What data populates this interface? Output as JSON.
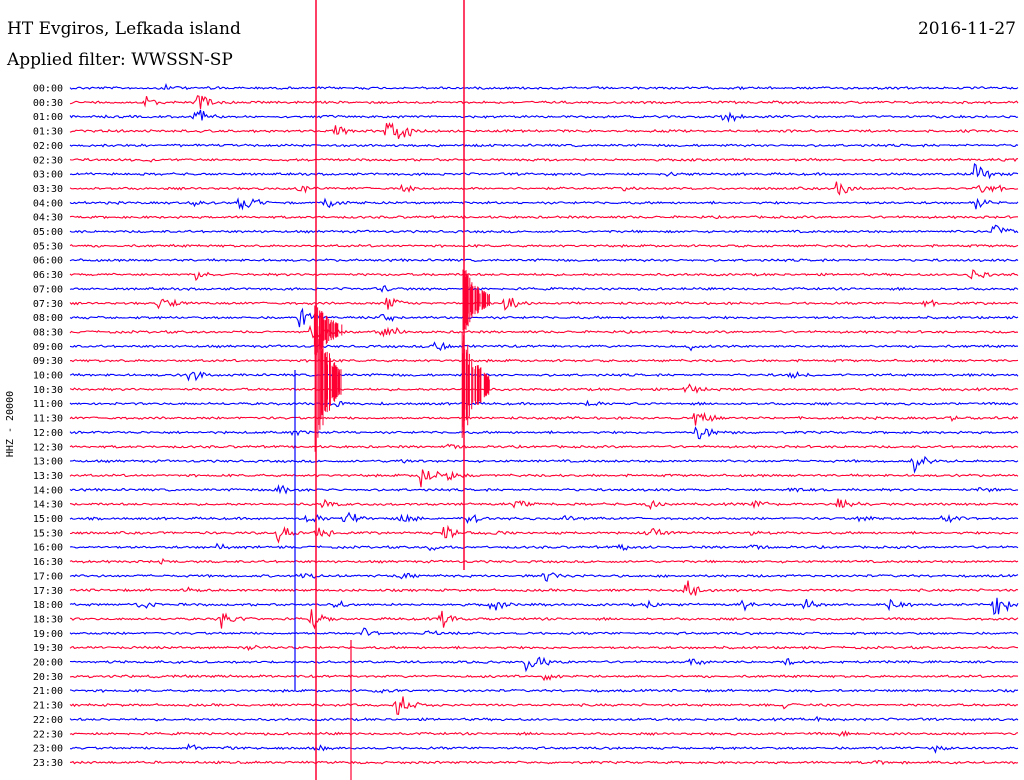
{
  "header": {
    "station": "HT Evgiros, Lefkada island",
    "date": "2016-11-27",
    "filter": "Applied filter: WWSSN-SP"
  },
  "chart_data": {
    "type": "line",
    "title": "HT Evgiros, Lefkada island",
    "subtitle": "Applied filter: WWSSN-SP",
    "date": "2016-11-27",
    "ylabel": "HHZ - 20000",
    "row_labels": [
      "00:00",
      "00:30",
      "01:00",
      "01:30",
      "02:00",
      "02:30",
      "03:00",
      "03:30",
      "04:00",
      "04:30",
      "05:00",
      "05:30",
      "06:00",
      "06:30",
      "07:00",
      "07:30",
      "08:00",
      "08:30",
      "09:00",
      "09:30",
      "10:00",
      "10:30",
      "11:00",
      "11:30",
      "12:00",
      "12:30",
      "13:00",
      "13:30",
      "14:00",
      "14:30",
      "15:00",
      "15:30",
      "16:00",
      "16:30",
      "17:00",
      "17:30",
      "18:00",
      "18:30",
      "19:00",
      "19:30",
      "20:00",
      "20:30",
      "21:00",
      "21:30",
      "22:00",
      "22:30",
      "23:00",
      "23:30"
    ],
    "colors": [
      "#0000ff",
      "#ff0033"
    ],
    "events": [
      {
        "row": 0,
        "x": 0.1,
        "amp": 6
      },
      {
        "row": 1,
        "x": 0.08,
        "amp": 8
      },
      {
        "row": 1,
        "x": 0.135,
        "amp": 14
      },
      {
        "row": 2,
        "x": 0.13,
        "amp": 12
      },
      {
        "row": 2,
        "x": 0.69,
        "amp": 9
      },
      {
        "row": 3,
        "x": 0.28,
        "amp": 8
      },
      {
        "row": 3,
        "x": 0.335,
        "amp": 30
      },
      {
        "row": 5,
        "x": 0.08,
        "amp": 4
      },
      {
        "row": 6,
        "x": 0.63,
        "amp": 5
      },
      {
        "row": 6,
        "x": 0.955,
        "amp": 14
      },
      {
        "row": 7,
        "x": 0.24,
        "amp": 9
      },
      {
        "row": 7,
        "x": 0.35,
        "amp": 6
      },
      {
        "row": 7,
        "x": 0.585,
        "amp": 5
      },
      {
        "row": 7,
        "x": 0.81,
        "amp": 14
      },
      {
        "row": 7,
        "x": 0.96,
        "amp": 12
      },
      {
        "row": 8,
        "x": 0.13,
        "amp": 5
      },
      {
        "row": 8,
        "x": 0.18,
        "amp": 14
      },
      {
        "row": 8,
        "x": 0.27,
        "amp": 12
      },
      {
        "row": 8,
        "x": 0.955,
        "amp": 8
      },
      {
        "row": 10,
        "x": 0.975,
        "amp": 18
      },
      {
        "row": 13,
        "x": 0.13,
        "amp": 8
      },
      {
        "row": 13,
        "x": 0.95,
        "amp": 9
      },
      {
        "row": 14,
        "x": 0.33,
        "amp": 6
      },
      {
        "row": 15,
        "x": 0.095,
        "amp": 12
      },
      {
        "row": 15,
        "x": 0.335,
        "amp": 10
      },
      {
        "row": 15,
        "x": 0.46,
        "amp": 12
      },
      {
        "row": 15,
        "x": 0.9,
        "amp": 6
      },
      {
        "row": 16,
        "x": 0.24,
        "amp": 14
      },
      {
        "row": 16,
        "x": 0.33,
        "amp": 8
      },
      {
        "row": 17,
        "x": 0.255,
        "amp": 14
      },
      {
        "row": 17,
        "x": 0.33,
        "amp": 12
      },
      {
        "row": 18,
        "x": 0.385,
        "amp": 8
      },
      {
        "row": 18,
        "x": 0.655,
        "amp": 6
      },
      {
        "row": 20,
        "x": 0.125,
        "amp": 10
      },
      {
        "row": 20,
        "x": 0.76,
        "amp": 6
      },
      {
        "row": 21,
        "x": 0.65,
        "amp": 8
      },
      {
        "row": 22,
        "x": 0.28,
        "amp": 5
      },
      {
        "row": 22,
        "x": 0.545,
        "amp": 6
      },
      {
        "row": 23,
        "x": 0.66,
        "amp": 12
      },
      {
        "row": 23,
        "x": 0.93,
        "amp": 5
      },
      {
        "row": 24,
        "x": 0.235,
        "amp": 5
      },
      {
        "row": 24,
        "x": 0.66,
        "amp": 14
      },
      {
        "row": 25,
        "x": 0.4,
        "amp": 5
      },
      {
        "row": 26,
        "x": 0.345,
        "amp": 5
      },
      {
        "row": 26,
        "x": 0.89,
        "amp": 12
      },
      {
        "row": 27,
        "x": 0.37,
        "amp": 14
      },
      {
        "row": 27,
        "x": 0.4,
        "amp": 8
      },
      {
        "row": 28,
        "x": 0.22,
        "amp": 8
      },
      {
        "row": 28,
        "x": 0.76,
        "amp": 6
      },
      {
        "row": 28,
        "x": 0.96,
        "amp": 6
      },
      {
        "row": 29,
        "x": 0.265,
        "amp": 8
      },
      {
        "row": 29,
        "x": 0.47,
        "amp": 6
      },
      {
        "row": 29,
        "x": 0.61,
        "amp": 8
      },
      {
        "row": 29,
        "x": 0.72,
        "amp": 8
      },
      {
        "row": 29,
        "x": 0.81,
        "amp": 10
      },
      {
        "row": 30,
        "x": 0.25,
        "amp": 9
      },
      {
        "row": 30,
        "x": 0.29,
        "amp": 10
      },
      {
        "row": 30,
        "x": 0.35,
        "amp": 8
      },
      {
        "row": 30,
        "x": 0.42,
        "amp": 7
      },
      {
        "row": 30,
        "x": 0.52,
        "amp": 6
      },
      {
        "row": 30,
        "x": 0.83,
        "amp": 7
      },
      {
        "row": 30,
        "x": 0.92,
        "amp": 8
      },
      {
        "row": 31,
        "x": 0.22,
        "amp": 14
      },
      {
        "row": 31,
        "x": 0.26,
        "amp": 9
      },
      {
        "row": 31,
        "x": 0.395,
        "amp": 12
      },
      {
        "row": 31,
        "x": 0.44,
        "amp": 8
      },
      {
        "row": 31,
        "x": 0.51,
        "amp": 6
      },
      {
        "row": 31,
        "x": 0.61,
        "amp": 9
      },
      {
        "row": 31,
        "x": 0.72,
        "amp": 7
      },
      {
        "row": 32,
        "x": 0.15,
        "amp": 6
      },
      {
        "row": 32,
        "x": 0.38,
        "amp": 6
      },
      {
        "row": 32,
        "x": 0.58,
        "amp": 5
      },
      {
        "row": 32,
        "x": 0.72,
        "amp": 5
      },
      {
        "row": 33,
        "x": 0.095,
        "amp": 4
      },
      {
        "row": 34,
        "x": 0.245,
        "amp": 6
      },
      {
        "row": 34,
        "x": 0.345,
        "amp": 7
      },
      {
        "row": 34,
        "x": 0.5,
        "amp": 8
      },
      {
        "row": 35,
        "x": 0.12,
        "amp": 5
      },
      {
        "row": 35,
        "x": 0.65,
        "amp": 14
      },
      {
        "row": 36,
        "x": 0.07,
        "amp": 8
      },
      {
        "row": 36,
        "x": 0.28,
        "amp": 6
      },
      {
        "row": 36,
        "x": 0.445,
        "amp": 9
      },
      {
        "row": 36,
        "x": 0.61,
        "amp": 6
      },
      {
        "row": 36,
        "x": 0.71,
        "amp": 7
      },
      {
        "row": 36,
        "x": 0.775,
        "amp": 9
      },
      {
        "row": 36,
        "x": 0.865,
        "amp": 10
      },
      {
        "row": 36,
        "x": 0.975,
        "amp": 16
      },
      {
        "row": 37,
        "x": 0.16,
        "amp": 14
      },
      {
        "row": 37,
        "x": 0.255,
        "amp": 12
      },
      {
        "row": 37,
        "x": 0.39,
        "amp": 14
      },
      {
        "row": 38,
        "x": 0.31,
        "amp": 6
      },
      {
        "row": 38,
        "x": 0.375,
        "amp": 5
      },
      {
        "row": 39,
        "x": 0.185,
        "amp": 5
      },
      {
        "row": 40,
        "x": 0.48,
        "amp": 16
      },
      {
        "row": 40,
        "x": 0.655,
        "amp": 6
      },
      {
        "row": 40,
        "x": 0.755,
        "amp": 5
      },
      {
        "row": 41,
        "x": 0.5,
        "amp": 6
      },
      {
        "row": 42,
        "x": 0.32,
        "amp": 5
      },
      {
        "row": 43,
        "x": 0.345,
        "amp": 18
      },
      {
        "row": 43,
        "x": 0.75,
        "amp": 5
      },
      {
        "row": 44,
        "x": 0.785,
        "amp": 5
      },
      {
        "row": 45,
        "x": 0.81,
        "amp": 5
      },
      {
        "row": 46,
        "x": 0.125,
        "amp": 6
      },
      {
        "row": 46,
        "x": 0.16,
        "amp": 5
      },
      {
        "row": 46,
        "x": 0.26,
        "amp": 5
      },
      {
        "row": 46,
        "x": 0.91,
        "amp": 6
      },
      {
        "row": 47,
        "x": 0.85,
        "amp": 5
      }
    ],
    "grid": false
  }
}
